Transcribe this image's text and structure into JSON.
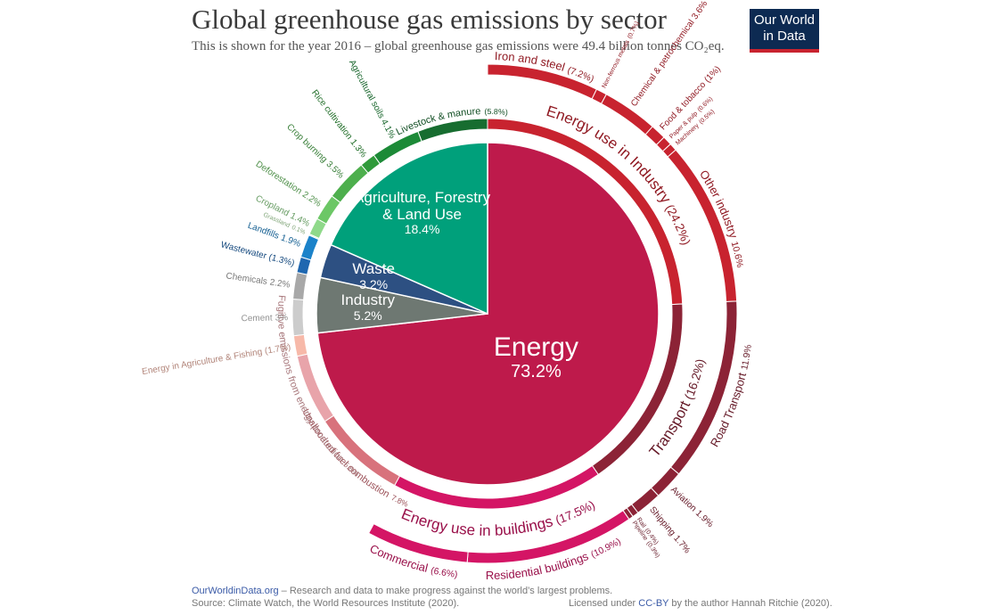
{
  "header": {
    "title": "Global greenhouse gas emissions by sector",
    "subtitle": "This is shown for the year 2016 – global greenhouse gas emissions were 49.4 billion tonnes CO₂eq.",
    "logo": "Our World in Data"
  },
  "footer": {
    "site": "OurWorldinData.org",
    "tagline": " – Research and data to make progress against the world’s largest problems.",
    "source": "Source: Climate Watch, the World Resources Institute (2020).",
    "license_pre": "Licensed under ",
    "license": "CC-BY",
    "license_post": " by the author Hannah Ritchie  (2020)."
  },
  "chart_data": {
    "type": "sunburst",
    "sectors": [
      {
        "name": "Energy",
        "value": 73.2,
        "value_label": "73.2%",
        "color": "#be1a4b",
        "children": [
          {
            "name": "Energy use in Industry",
            "value": 24.2,
            "value_label": "(24.2%)",
            "color": "#c8232f",
            "children": [
              {
                "name": "Iron and steel",
                "value": 7.2,
                "value_label": "(7.2%)",
                "color": "#c8232f"
              },
              {
                "name": "Non-ferrous metals",
                "value": 0.7,
                "value_label": "(0.7%)",
                "color": "#c8232f"
              },
              {
                "name": "Chemical & petrochemical",
                "value": 3.6,
                "value_label": "3.6%",
                "color": "#c8232f"
              },
              {
                "name": "Food & tobacco",
                "value": 1,
                "value_label": "(1%)",
                "color": "#c8232f"
              },
              {
                "name": "Paper & pulp",
                "value": 0.6,
                "value_label": "(0.6%)",
                "color": "#c8232f"
              },
              {
                "name": "Machinery",
                "value": 0.5,
                "value_label": "(0.5%)",
                "color": "#c8232f"
              },
              {
                "name": "Other industry",
                "value": 10.6,
                "value_label": "10.6%",
                "color": "#c8232f"
              }
            ]
          },
          {
            "name": "Transport",
            "value": 16.2,
            "value_label": "(16.2%)",
            "color": "#8c2336",
            "children": [
              {
                "name": "Road Transport",
                "value": 11.9,
                "value_label": "11.9%",
                "color": "#8c2336"
              },
              {
                "name": "Aviation",
                "value": 1.9,
                "value_label": "1.9%",
                "color": "#8c2336"
              },
              {
                "name": "Shipping",
                "value": 1.7,
                "value_label": "1.7%",
                "color": "#8c2336"
              },
              {
                "name": "Rail",
                "value": 0.4,
                "value_label": "(0.4%)",
                "color": "#8c2336"
              },
              {
                "name": "Pipeline",
                "value": 0.3,
                "value_label": "(0.3%)",
                "color": "#8c2336"
              }
            ]
          },
          {
            "name": "Energy use in buildings",
            "value": 17.5,
            "value_label": "(17.5%)",
            "color": "#d41565",
            "children": [
              {
                "name": "Residential buildings",
                "value": 10.9,
                "value_label": "(10.9%)",
                "color": "#d41565"
              },
              {
                "name": "Commercial",
                "value": 6.6,
                "value_label": "(6.6%)",
                "color": "#d41565"
              }
            ]
          },
          {
            "name": "Unallocated fuel combustion",
            "value": 7.8,
            "value_label": "7.8%",
            "color": "#d8727c"
          },
          {
            "name": "Fugitive emissions from energy production",
            "value": 5.8,
            "value_label": "5.8%",
            "color": "#e8a4aa"
          },
          {
            "name": "Energy in Agriculture & Fishing",
            "value": 1.7,
            "value_label": "(1.7%)",
            "color": "#f7b9a9"
          }
        ]
      },
      {
        "name": "Industry",
        "value": 5.2,
        "value_label": "5.2%",
        "color": "#6e7872",
        "children": [
          {
            "name": "Cement",
            "value": 3,
            "value_label": "3%",
            "color": "#cccccc"
          },
          {
            "name": "Chemicals",
            "value": 2.2,
            "value_label": "2.2%",
            "color": "#a8a8a8"
          }
        ]
      },
      {
        "name": "Waste",
        "value": 3.2,
        "value_label": "3.2%",
        "color": "#2d5082",
        "children": [
          {
            "name": "Wastewater",
            "value": 1.3,
            "value_label": "(1.3%)",
            "color": "#1f67b0"
          },
          {
            "name": "Landfills",
            "value": 1.9,
            "value_label": "1.9%",
            "color": "#1b82c9"
          }
        ]
      },
      {
        "name": "Agriculture, Forestry & Land Use",
        "value": 18.4,
        "value_label": "18.4%",
        "color": "#00a07b",
        "children": [
          {
            "name": "Grassland",
            "value": 0.1,
            "value_label": "0.1%",
            "color": "#b3e6a8"
          },
          {
            "name": "Cropland",
            "value": 1.4,
            "value_label": "1.4%",
            "color": "#8fd98a"
          },
          {
            "name": "Deforestation",
            "value": 2.2,
            "value_label": "2.2%",
            "color": "#6cc766"
          },
          {
            "name": "Crop burning",
            "value": 3.5,
            "value_label": "3.5%",
            "color": "#4daf4d"
          },
          {
            "name": "Rice cultivation",
            "value": 1.3,
            "value_label": "1.3%",
            "color": "#2f9a3a"
          },
          {
            "name": "Agricultural soils",
            "value": 4.1,
            "value_label": "4.1%",
            "color": "#1c8a37"
          },
          {
            "name": "Livestock & manure",
            "value": 5.8,
            "value_label": "(5.8%)",
            "color": "#176d30"
          }
        ]
      }
    ]
  }
}
